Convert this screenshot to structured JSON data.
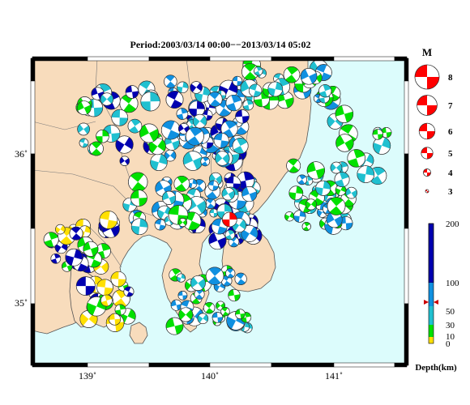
{
  "title": "Period:2003/03/14 00:00−−2013/03/14 05:02",
  "axes": {
    "x_ticks": [
      {
        "value": 139,
        "label": "139˚"
      },
      {
        "value": 140,
        "label": "140˚"
      },
      {
        "value": 141,
        "label": "141˚"
      }
    ],
    "y_ticks": [
      {
        "value": 36,
        "label": "36˚"
      },
      {
        "value": 35,
        "label": "35˚"
      }
    ],
    "lon_range": [
      138.55,
      141.55
    ],
    "lat_range": [
      34.65,
      36.65
    ]
  },
  "colors": {
    "land": "#f8dcbc",
    "sea": "#dcfcfc",
    "mag_legend": "#ff0000",
    "depth_0_10": "#ffe000",
    "depth_10_30": "#00e000",
    "depth_30_60": "#20c0d0",
    "depth_60_100": "#1090e0",
    "depth_100_200": "#0000b0",
    "highlight_event": "#ff0000",
    "marker": "#cc0000"
  },
  "magnitude_legend": {
    "title": "M",
    "items": [
      {
        "label": "8",
        "mag": 8
      },
      {
        "label": "7",
        "mag": 7
      },
      {
        "label": "6",
        "mag": 6
      },
      {
        "label": "5",
        "mag": 5
      },
      {
        "label": "4",
        "mag": 4
      },
      {
        "label": "3",
        "mag": 3
      }
    ]
  },
  "depth_colorbar": {
    "label": "Depth(km)",
    "ticks": [
      {
        "value": 200,
        "label": "200"
      },
      {
        "value": 100,
        "label": "100"
      },
      {
        "value": 50,
        "label": "50"
      },
      {
        "value": 30,
        "label": "30"
      },
      {
        "value": 10,
        "label": "10"
      },
      {
        "value": 0,
        "label": "0"
      }
    ],
    "marker_depth": 72
  },
  "highlight_event": {
    "lon": 140.13,
    "lat": 35.6,
    "mag": 5.5
  }
}
